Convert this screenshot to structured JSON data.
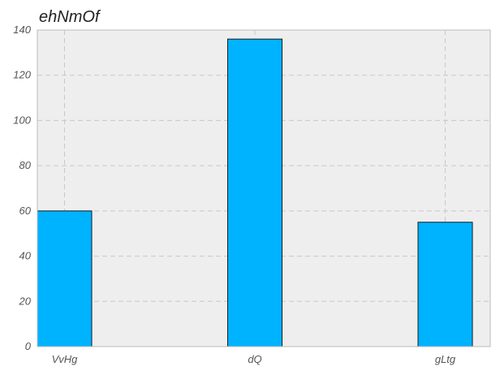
{
  "chart_data": {
    "type": "bar",
    "title": "ehNmOf",
    "xlabel": "",
    "ylabel": "",
    "categories": [
      "VvHg",
      "dQ",
      "gLtg"
    ],
    "values": [
      60,
      136,
      55
    ],
    "ylim": [
      0,
      140
    ],
    "yticks": [
      0,
      20,
      40,
      60,
      80,
      100,
      120,
      140
    ],
    "grid": true,
    "bar_color": "#00b3ff",
    "background_color": "#eeeeee"
  }
}
